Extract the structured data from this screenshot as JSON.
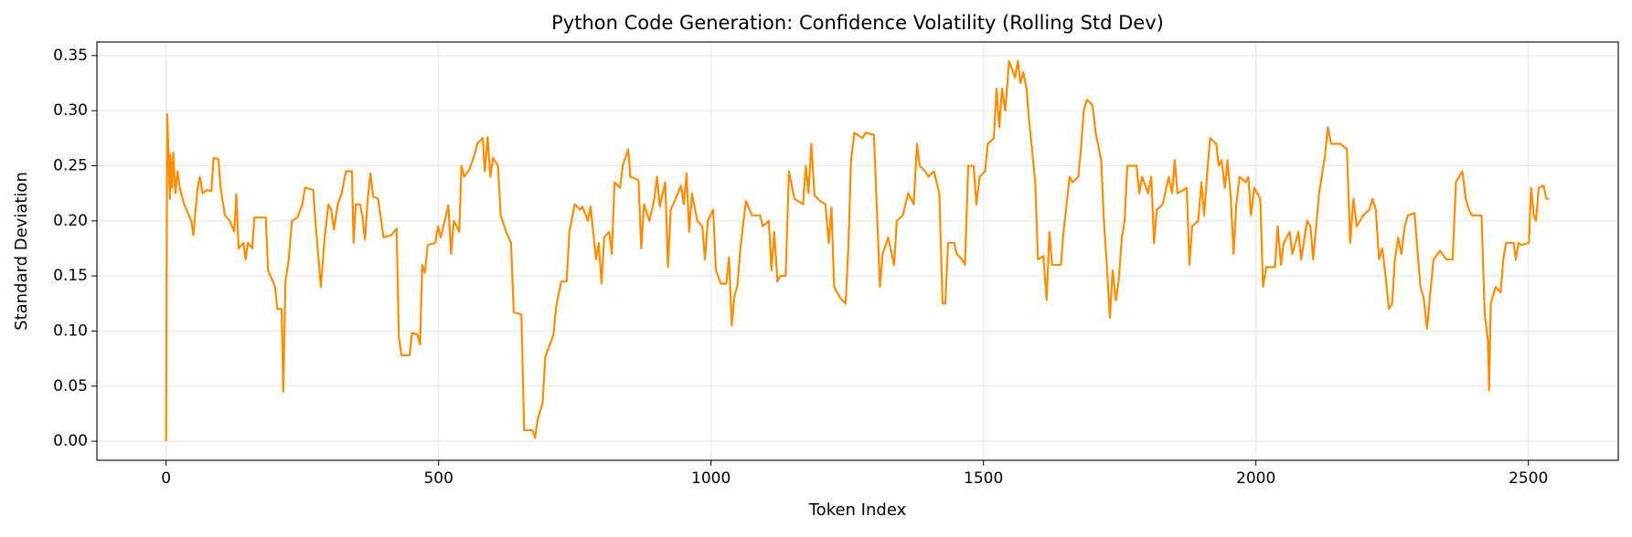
{
  "chart_data": {
    "type": "line",
    "title": "Python Code Generation: Confidence Volatility (Rolling Std Dev)",
    "x_label": "Token Index",
    "y_label": "Standard Deviation",
    "color": "#ff8c00",
    "grid": true,
    "xlim": [
      -127,
      2665
    ],
    "ylim": [
      -0.0173,
      0.3623
    ],
    "xticks": [
      0,
      500,
      1000,
      1500,
      2000,
      2500
    ],
    "yticks": [
      {
        "value": 0,
        "label": "0.00"
      },
      {
        "value": 0.05,
        "label": "0.05"
      },
      {
        "value": 0.1,
        "label": "0.10"
      },
      {
        "value": 0.15,
        "label": "0.15"
      },
      {
        "value": 0.2,
        "label": "0.20"
      },
      {
        "value": 0.25,
        "label": "0.25"
      },
      {
        "value": 0.3,
        "label": "0.30"
      },
      {
        "value": 0.35,
        "label": "0.35"
      }
    ],
    "x": [
      0,
      2,
      7,
      8,
      11,
      13,
      17,
      21,
      25,
      33,
      42,
      46,
      50,
      54,
      58,
      62,
      67,
      75,
      83,
      87,
      96,
      100,
      108,
      117,
      125,
      129,
      133,
      142,
      146,
      150,
      158,
      162,
      183,
      187,
      196,
      200,
      204,
      212,
      215,
      219,
      225,
      231,
      241,
      250,
      255,
      270,
      274,
      284,
      291,
      298,
      303,
      308,
      315,
      322,
      330,
      341,
      344,
      348,
      356,
      360,
      365,
      370,
      375,
      380,
      389,
      399,
      413,
      423,
      427,
      432,
      447,
      451,
      461,
      466,
      470,
      475,
      480,
      494,
      499,
      504,
      518,
      523,
      528,
      538,
      542,
      547,
      557,
      566,
      571,
      581,
      585,
      590,
      595,
      600,
      609,
      614,
      624,
      633,
      638,
      652,
      657,
      672,
      677,
      682,
      691,
      696,
      706,
      711,
      716,
      725,
      735,
      740,
      750,
      760,
      764,
      774,
      779,
      789,
      794,
      799,
      804,
      813,
      818,
      823,
      833,
      838,
      848,
      852,
      867,
      872,
      877,
      887,
      896,
      901,
      906,
      916,
      921,
      926,
      935,
      945,
      950,
      955,
      960,
      965,
      975,
      984,
      989,
      994,
      1004,
      1009,
      1018,
      1028,
      1033,
      1038,
      1043,
      1048,
      1054,
      1064,
      1075,
      1090,
      1095,
      1106,
      1111,
      1116,
      1122,
      1127,
      1137,
      1143,
      1153,
      1169,
      1174,
      1179,
      1184,
      1190,
      1200,
      1210,
      1216,
      1221,
      1226,
      1237,
      1247,
      1252,
      1257,
      1263,
      1278,
      1284,
      1299,
      1304,
      1310,
      1315,
      1325,
      1336,
      1341,
      1352,
      1362,
      1372,
      1378,
      1383,
      1393,
      1399,
      1409,
      1419,
      1425,
      1430,
      1435,
      1446,
      1451,
      1461,
      1466,
      1472,
      1482,
      1487,
      1493,
      1503,
      1508,
      1519,
      1524,
      1529,
      1534,
      1540,
      1547,
      1558,
      1563,
      1568,
      1573,
      1579,
      1584,
      1589,
      1595,
      1600,
      1610,
      1616,
      1621,
      1626,
      1642,
      1647,
      1658,
      1663,
      1674,
      1679,
      1684,
      1690,
      1700,
      1706,
      1716,
      1721,
      1727,
      1732,
      1737,
      1743,
      1748,
      1754,
      1759,
      1764,
      1781,
      1786,
      1791,
      1802,
      1808,
      1813,
      1818,
      1829,
      1840,
      1846,
      1851,
      1856,
      1873,
      1878,
      1883,
      1894,
      1900,
      1905,
      1910,
      1916,
      1927,
      1932,
      1937,
      1943,
      1948,
      1954,
      1959,
      1964,
      1970,
      1981,
      1986,
      1991,
      1997,
      2008,
      2013,
      2019,
      2035,
      2040,
      2046,
      2051,
      2062,
      2067,
      2078,
      2083,
      2094,
      2100,
      2105,
      2116,
      2127,
      2132,
      2138,
      2155,
      2167,
      2173,
      2179,
      2185,
      2197,
      2208,
      2214,
      2220,
      2226,
      2232,
      2238,
      2244,
      2250,
      2255,
      2261,
      2267,
      2273,
      2279,
      2291,
      2297,
      2302,
      2308,
      2314,
      2320,
      2326,
      2338,
      2349,
      2361,
      2367,
      2373,
      2379,
      2385,
      2391,
      2396,
      2414,
      2420,
      2426,
      2428,
      2431,
      2440,
      2449,
      2454,
      2459,
      2473,
      2477,
      2482,
      2487,
      2501,
      2505,
      2510,
      2514,
      2519,
      2528,
      2533,
      2538
    ],
    "values": [
      0.0,
      0.297,
      0.22,
      0.26,
      0.23,
      0.262,
      0.225,
      0.245,
      0.23,
      0.215,
      0.205,
      0.2,
      0.187,
      0.21,
      0.23,
      0.24,
      0.225,
      0.228,
      0.227,
      0.257,
      0.256,
      0.23,
      0.205,
      0.2,
      0.19,
      0.224,
      0.175,
      0.18,
      0.165,
      0.18,
      0.175,
      0.203,
      0.203,
      0.155,
      0.145,
      0.14,
      0.12,
      0.12,
      0.045,
      0.145,
      0.165,
      0.2,
      0.203,
      0.215,
      0.23,
      0.228,
      0.2,
      0.14,
      0.185,
      0.215,
      0.21,
      0.192,
      0.215,
      0.225,
      0.245,
      0.245,
      0.18,
      0.215,
      0.215,
      0.205,
      0.183,
      0.22,
      0.243,
      0.222,
      0.22,
      0.185,
      0.187,
      0.193,
      0.095,
      0.078,
      0.078,
      0.098,
      0.097,
      0.088,
      0.16,
      0.153,
      0.178,
      0.18,
      0.195,
      0.185,
      0.214,
      0.17,
      0.2,
      0.19,
      0.25,
      0.24,
      0.247,
      0.26,
      0.27,
      0.275,
      0.245,
      0.276,
      0.24,
      0.257,
      0.25,
      0.205,
      0.19,
      0.18,
      0.117,
      0.115,
      0.01,
      0.01,
      0.003,
      0.02,
      0.035,
      0.077,
      0.09,
      0.097,
      0.123,
      0.145,
      0.145,
      0.19,
      0.215,
      0.21,
      0.213,
      0.2,
      0.213,
      0.165,
      0.18,
      0.143,
      0.185,
      0.19,
      0.17,
      0.235,
      0.23,
      0.25,
      0.265,
      0.24,
      0.237,
      0.175,
      0.215,
      0.2,
      0.22,
      0.24,
      0.213,
      0.235,
      0.158,
      0.21,
      0.22,
      0.232,
      0.215,
      0.243,
      0.19,
      0.225,
      0.2,
      0.195,
      0.165,
      0.2,
      0.21,
      0.155,
      0.143,
      0.143,
      0.167,
      0.105,
      0.132,
      0.14,
      0.175,
      0.218,
      0.205,
      0.205,
      0.195,
      0.2,
      0.155,
      0.19,
      0.145,
      0.15,
      0.15,
      0.245,
      0.22,
      0.215,
      0.25,
      0.225,
      0.27,
      0.223,
      0.218,
      0.215,
      0.18,
      0.212,
      0.14,
      0.13,
      0.125,
      0.175,
      0.255,
      0.28,
      0.275,
      0.28,
      0.278,
      0.215,
      0.14,
      0.17,
      0.185,
      0.16,
      0.2,
      0.205,
      0.225,
      0.215,
      0.27,
      0.25,
      0.245,
      0.24,
      0.245,
      0.225,
      0.125,
      0.125,
      0.18,
      0.18,
      0.17,
      0.165,
      0.16,
      0.25,
      0.25,
      0.215,
      0.24,
      0.245,
      0.27,
      0.275,
      0.32,
      0.285,
      0.32,
      0.3,
      0.345,
      0.33,
      0.345,
      0.325,
      0.335,
      0.32,
      0.29,
      0.265,
      0.235,
      0.165,
      0.168,
      0.128,
      0.19,
      0.16,
      0.16,
      0.19,
      0.24,
      0.235,
      0.24,
      0.265,
      0.3,
      0.31,
      0.305,
      0.28,
      0.255,
      0.2,
      0.155,
      0.112,
      0.155,
      0.128,
      0.145,
      0.185,
      0.2,
      0.25,
      0.25,
      0.225,
      0.24,
      0.225,
      0.24,
      0.18,
      0.21,
      0.215,
      0.24,
      0.225,
      0.255,
      0.225,
      0.23,
      0.16,
      0.195,
      0.2,
      0.235,
      0.205,
      0.24,
      0.275,
      0.27,
      0.25,
      0.255,
      0.23,
      0.255,
      0.22,
      0.17,
      0.215,
      0.24,
      0.235,
      0.24,
      0.205,
      0.23,
      0.22,
      0.14,
      0.158,
      0.158,
      0.195,
      0.16,
      0.18,
      0.19,
      0.17,
      0.19,
      0.165,
      0.2,
      0.195,
      0.165,
      0.225,
      0.26,
      0.285,
      0.27,
      0.27,
      0.265,
      0.18,
      0.22,
      0.195,
      0.205,
      0.21,
      0.22,
      0.21,
      0.165,
      0.175,
      0.15,
      0.12,
      0.125,
      0.165,
      0.185,
      0.17,
      0.195,
      0.205,
      0.207,
      0.17,
      0.14,
      0.13,
      0.102,
      0.135,
      0.165,
      0.173,
      0.165,
      0.165,
      0.235,
      0.24,
      0.245,
      0.22,
      0.21,
      0.205,
      0.205,
      0.115,
      0.09,
      0.046,
      0.125,
      0.14,
      0.135,
      0.165,
      0.18,
      0.18,
      0.165,
      0.18,
      0.178,
      0.18,
      0.23,
      0.205,
      0.2,
      0.23,
      0.232,
      0.22,
      0.22
    ]
  }
}
